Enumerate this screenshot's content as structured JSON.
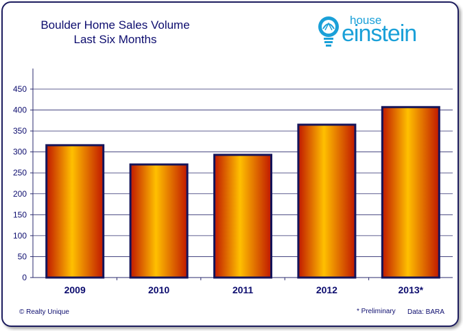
{
  "header": {
    "title_line1": "Boulder Home Sales Volume",
    "title_line2": "Last Six Months"
  },
  "logo": {
    "small": "house",
    "big": "einstein"
  },
  "footer": {
    "copyright": "© Realty Unique",
    "note": "* Preliminary",
    "source": "Data: BARA"
  },
  "colors": {
    "bar_outline": "#14145a",
    "bar_center": "#ffc000",
    "bar_edge": "#c01800",
    "grid": "#2a2a6e",
    "text": "#0c0c6e",
    "logo": "#1aa0d8"
  },
  "chart_data": {
    "type": "bar",
    "title": "Boulder Home Sales Volume\nLast Six Months",
    "categories": [
      "2009",
      "2010",
      "2011",
      "2012",
      "2013*"
    ],
    "values": [
      316,
      270,
      293,
      365,
      407
    ],
    "ylim": [
      0,
      450
    ],
    "yticks": [
      0,
      50,
      100,
      150,
      200,
      250,
      300,
      350,
      400,
      450
    ],
    "grid": true,
    "xlabel": "",
    "ylabel": ""
  }
}
